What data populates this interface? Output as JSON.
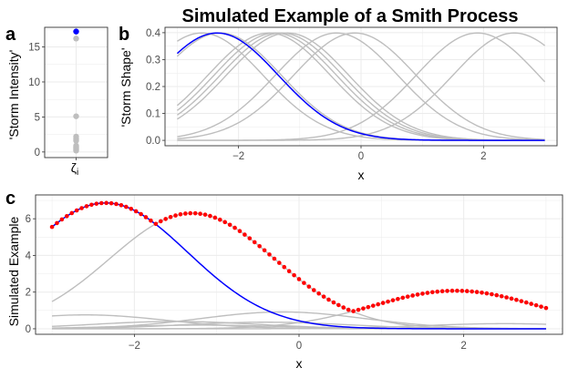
{
  "title": "Simulated Example of a Smith Process",
  "colors": {
    "highlight": "#0000ff",
    "storms": "#bebebe",
    "max_process": "#ff0000",
    "grid": "#ebebeb"
  },
  "chart_data": [
    {
      "panel": "a",
      "type": "scatter",
      "xlabel": "ζ",
      "xlabel_subscript": "i",
      "ylabel": "'Storm Intensity'",
      "ylim": [
        -0.8,
        17.8
      ],
      "yticks": [
        "0",
        "5",
        "10",
        "15"
      ],
      "ytick_values": [
        0,
        5,
        10,
        15
      ],
      "points": [
        {
          "y": 17.2,
          "highlight": true
        },
        {
          "y": 16.2,
          "highlight": false
        },
        {
          "y": 5.1,
          "highlight": false
        },
        {
          "y": 2.2,
          "highlight": false
        },
        {
          "y": 1.9,
          "highlight": false
        },
        {
          "y": 1.6,
          "highlight": false
        },
        {
          "y": 0.9,
          "highlight": false
        },
        {
          "y": 0.7,
          "highlight": false
        },
        {
          "y": 0.5,
          "highlight": false
        },
        {
          "y": 0.3,
          "highlight": false
        },
        {
          "y": 0.2,
          "highlight": false
        }
      ],
      "grid": true
    },
    {
      "panel": "b",
      "type": "line",
      "xlabel": "x",
      "ylabel": "'Storm Shape'",
      "xlim": [
        -3.2,
        3.2
      ],
      "ylim": [
        -0.02,
        0.42
      ],
      "xticks": [
        "−2",
        "0",
        "2"
      ],
      "xtick_values": [
        -2,
        0,
        2
      ],
      "yticks": [
        "0.0",
        "0.1",
        "0.2",
        "0.3",
        "0.4"
      ],
      "ytick_values": [
        0,
        0.1,
        0.2,
        0.3,
        0.4
      ],
      "curve": "gaussian density, sd 1",
      "centers_grey": [
        -2.6,
        -2.3,
        -1.5,
        -1.4,
        -1.3,
        -1.2,
        -0.4,
        -0.1,
        1.9,
        2.5
      ],
      "center_blue": -2.35,
      "grid": true
    },
    {
      "panel": "c",
      "type": "line",
      "xlabel": "x",
      "ylabel": "Simulated Example",
      "xlim": [
        -3.2,
        3.2
      ],
      "ylim": [
        -0.3,
        7.3
      ],
      "xticks": [
        "−2",
        "0",
        "2"
      ],
      "xtick_values": [
        -2,
        0,
        2
      ],
      "yticks": [
        "0",
        "2",
        "4",
        "6"
      ],
      "ytick_values": [
        0,
        2,
        4,
        6
      ],
      "storms_grey": [
        {
          "center": -1.3,
          "intensity": 15.8
        },
        {
          "center": -0.2,
          "intensity": 2.3
        },
        {
          "center": -2.6,
          "intensity": 1.9
        },
        {
          "center": -1.5,
          "intensity": 1.0
        },
        {
          "center": -0.4,
          "intensity": 0.9
        },
        {
          "center": 1.9,
          "intensity": 5.2
        },
        {
          "center": 2.5,
          "intensity": 0.7
        },
        {
          "center": -1.2,
          "intensity": 0.5
        }
      ],
      "storm_blue": {
        "center": -2.35,
        "intensity": 17.2
      },
      "max_process_note": "pointwise maximum of all storms (red points)",
      "grid": true
    }
  ]
}
